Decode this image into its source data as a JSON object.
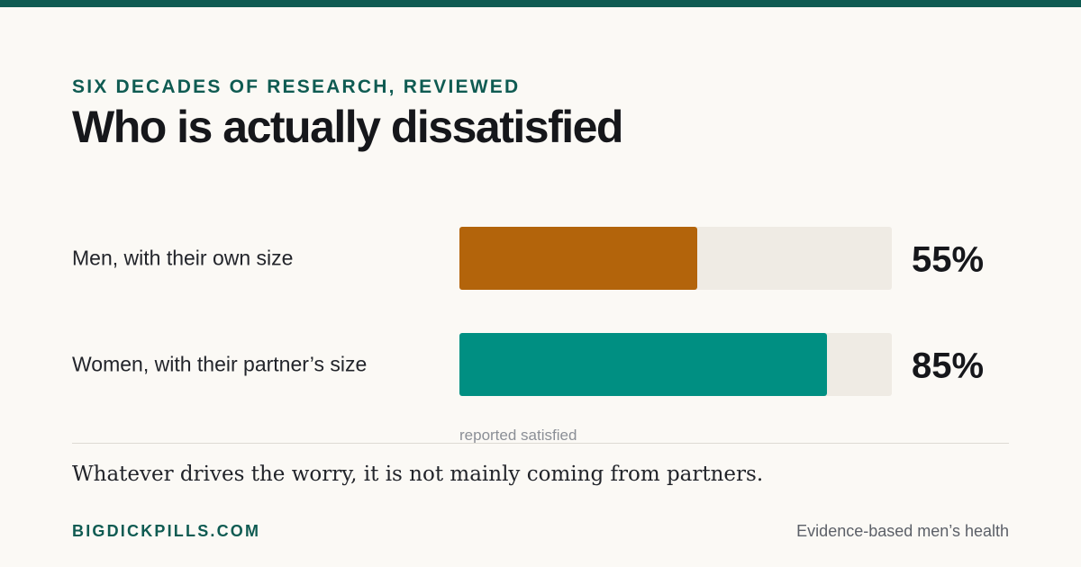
{
  "header": {
    "eyebrow": "SIX DECADES OF RESEARCH, REVIEWED",
    "title": "Who is actually dissatisfied"
  },
  "chart_data": {
    "type": "bar",
    "orientation": "horizontal",
    "categories": [
      "Men, with their own size",
      "Women, with their partner’s size"
    ],
    "values": [
      55,
      85
    ],
    "value_labels": [
      "55%",
      "85%"
    ],
    "colors": [
      "#b3640b",
      "#008f82"
    ],
    "track_color": "#efebe4",
    "xlim": [
      0,
      100
    ],
    "xlabel": "reported satisfied",
    "grid": false
  },
  "takeaway": "Whatever drives the worry, it is not mainly coming from partners.",
  "footer": {
    "brand": "BIGDICKPILLS.COM",
    "tagline": "Evidence-based men’s health"
  }
}
